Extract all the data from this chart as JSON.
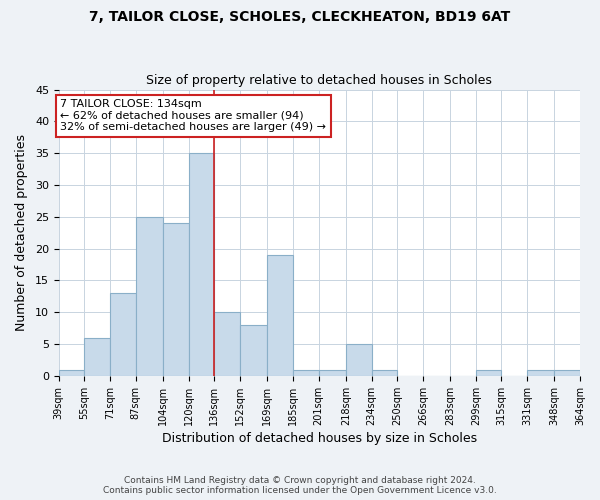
{
  "title": "7, TAILOR CLOSE, SCHOLES, CLECKHEATON, BD19 6AT",
  "subtitle": "Size of property relative to detached houses in Scholes",
  "xlabel": "Distribution of detached houses by size in Scholes",
  "ylabel": "Number of detached properties",
  "bar_color": "#c8daea",
  "bar_edge_color": "#8aafc8",
  "bin_edges": [
    39,
    55,
    71,
    87,
    104,
    120,
    136,
    152,
    169,
    185,
    201,
    218,
    234,
    250,
    266,
    283,
    299,
    315,
    331,
    348,
    364
  ],
  "bar_heights": [
    1,
    6,
    13,
    25,
    24,
    35,
    10,
    8,
    19,
    1,
    1,
    5,
    1,
    0,
    0,
    0,
    1,
    0,
    1,
    1
  ],
  "x_tick_labels": [
    "39sqm",
    "55sqm",
    "71sqm",
    "87sqm",
    "104sqm",
    "120sqm",
    "136sqm",
    "152sqm",
    "169sqm",
    "185sqm",
    "201sqm",
    "218sqm",
    "234sqm",
    "250sqm",
    "266sqm",
    "283sqm",
    "299sqm",
    "315sqm",
    "331sqm",
    "348sqm",
    "364sqm"
  ],
  "red_line_x": 136,
  "ylim": [
    0,
    45
  ],
  "yticks": [
    0,
    5,
    10,
    15,
    20,
    25,
    30,
    35,
    40,
    45
  ],
  "annotation_title": "7 TAILOR CLOSE: 134sqm",
  "annotation_line1": "← 62% of detached houses are smaller (94)",
  "annotation_line2": "32% of semi-detached houses are larger (49) →",
  "footnote1": "Contains HM Land Registry data © Crown copyright and database right 2024.",
  "footnote2": "Contains public sector information licensed under the Open Government Licence v3.0.",
  "bg_color": "#eef2f6",
  "plot_bg_color": "#ffffff",
  "grid_color": "#c8d4e0"
}
